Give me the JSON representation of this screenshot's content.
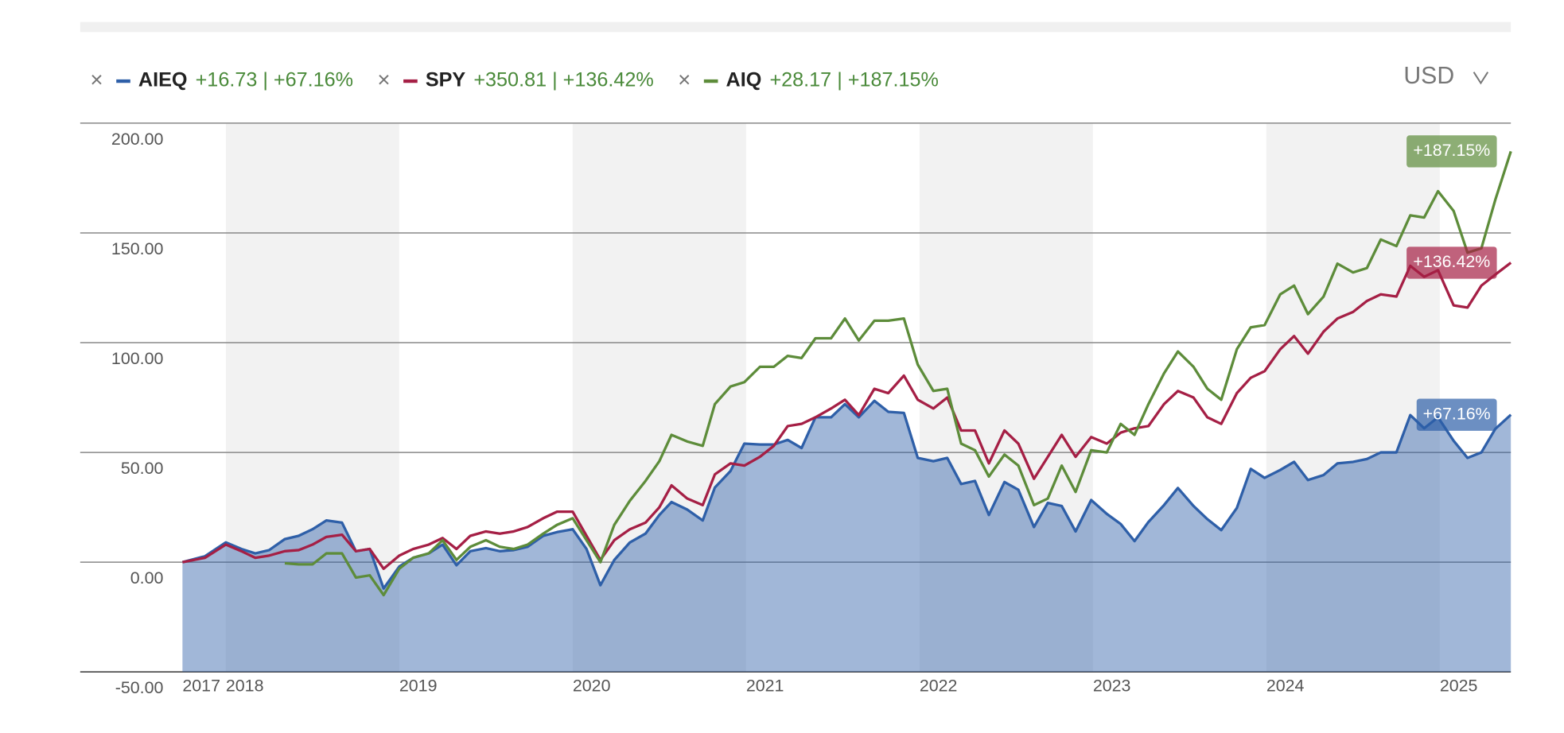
{
  "chart_data": {
    "type": "line",
    "currency": "USD",
    "x": [
      2017.75,
      2017.88,
      2018.0,
      2018.09,
      2018.17,
      2018.25,
      2018.34,
      2018.42,
      2018.5,
      2018.58,
      2018.67,
      2018.75,
      2018.83,
      2018.91,
      2019.0,
      2019.08,
      2019.17,
      2019.25,
      2019.33,
      2019.41,
      2019.5,
      2019.58,
      2019.66,
      2019.74,
      2019.83,
      2019.91,
      2020.0,
      2020.08,
      2020.16,
      2020.24,
      2020.33,
      2020.42,
      2020.5,
      2020.57,
      2020.66,
      2020.75,
      2020.82,
      2020.91,
      2020.99,
      2021.08,
      2021.16,
      2021.24,
      2021.32,
      2021.4,
      2021.49,
      2021.57,
      2021.65,
      2021.74,
      2021.82,
      2021.91,
      2021.99,
      2022.08,
      2022.16,
      2022.24,
      2022.32,
      2022.4,
      2022.49,
      2022.57,
      2022.66,
      2022.74,
      2022.82,
      2022.9,
      2022.99,
      2023.08,
      2023.16,
      2023.24,
      2023.32,
      2023.41,
      2023.49,
      2023.58,
      2023.66,
      2023.74,
      2023.83,
      2023.91,
      2023.99,
      2024.08,
      2024.16,
      2024.24,
      2024.33,
      2024.41,
      2024.5,
      2024.58,
      2024.66,
      2024.75,
      2024.83,
      2024.91,
      2024.99,
      2025.08,
      2025.16,
      2025.24,
      2025.32,
      2025.41
    ],
    "series": [
      {
        "name": "AIEQ",
        "change": "+16.73 | +67.16%",
        "end_label": "+67.16%",
        "color": "#2e5fa8",
        "area": true,
        "values": [
          0,
          2.7,
          9,
          6,
          4,
          5.5,
          10.5,
          12,
          15,
          19,
          18,
          5,
          6,
          -12,
          -2,
          2,
          4,
          8,
          -1.4,
          5,
          6.4,
          5,
          5.5,
          7,
          12,
          13.7,
          15,
          6,
          -10.5,
          1,
          9,
          13,
          21.5,
          27.4,
          24,
          19,
          34,
          41.5,
          54,
          53.6,
          53.6,
          55.7,
          52,
          66,
          66,
          72,
          66,
          73.5,
          68.5,
          68,
          47.5,
          46,
          47.5,
          35.6,
          37,
          21.5,
          36.5,
          33,
          16,
          27,
          25.6,
          14,
          28.3,
          22,
          17.4,
          9.6,
          18.3,
          26,
          33.8,
          25.6,
          19.6,
          14.6,
          24.7,
          42.5,
          38.4,
          42,
          45.7,
          37.4,
          39.7,
          45,
          45.7,
          47,
          50,
          50,
          67,
          61,
          66,
          55.3,
          47.5,
          50,
          60.7,
          67.16
        ]
      },
      {
        "name": "SPY",
        "change": "+350.81 | +136.42%",
        "end_label": "+136.42%",
        "color": "#a51f45",
        "area": false,
        "values": [
          0,
          2,
          8,
          5,
          2,
          3,
          5,
          5.5,
          8,
          11.5,
          12.5,
          5,
          6,
          -3,
          3,
          6,
          8,
          11,
          6,
          12,
          14,
          13,
          14,
          16,
          20,
          23,
          23,
          12,
          1,
          10,
          15,
          18,
          25,
          35,
          29,
          26,
          40,
          45,
          44,
          48,
          53,
          62,
          63,
          66,
          70,
          74,
          67,
          79,
          77,
          85,
          74,
          70,
          75,
          60,
          60,
          45,
          60,
          54,
          38,
          48,
          58,
          48,
          57,
          54,
          59,
          61,
          62,
          72,
          78,
          75,
          66,
          63,
          77,
          84,
          87,
          97,
          103,
          95,
          105,
          111,
          114,
          119,
          122,
          121,
          135,
          130,
          133,
          117,
          116,
          126,
          131,
          136.42
        ]
      },
      {
        "name": "AIQ",
        "change": "+28.17 | +187.15%",
        "end_label": "+187.15%",
        "color": "#5d8c3a",
        "area": false,
        "values": [
          null,
          null,
          null,
          null,
          null,
          null,
          -0.5,
          -1,
          -1,
          4,
          4,
          -7,
          -6,
          -15,
          -3,
          2,
          4,
          10,
          1,
          7,
          10,
          7,
          6,
          8,
          13,
          17,
          20,
          10,
          0,
          17,
          28,
          37,
          46,
          58,
          55,
          53,
          72,
          80,
          82,
          89,
          89,
          94,
          93,
          102,
          102,
          111,
          101,
          110,
          110,
          111,
          90,
          78,
          79,
          54,
          51,
          39,
          49,
          44,
          26,
          29,
          44,
          32,
          51,
          50,
          63,
          58,
          72,
          86,
          96,
          89,
          79,
          74,
          97,
          107,
          108,
          122,
          126,
          113,
          121,
          136,
          132,
          134,
          147,
          144,
          158,
          157,
          169,
          160,
          141,
          143,
          165,
          187.15
        ]
      }
    ],
    "xlim": [
      2017.75,
      2025.41
    ],
    "xticks": [
      {
        "value": 2017.75,
        "label": "2017"
      },
      2018,
      2019,
      2020,
      2021,
      2022,
      2023,
      2024,
      2025
    ],
    "ylim": [
      -50,
      200
    ],
    "yticks": [
      {
        "value": -50,
        "label": "-50.00"
      },
      {
        "value": 0,
        "label": "0.00"
      },
      {
        "value": 50,
        "label": "50.00"
      },
      {
        "value": 100,
        "label": "100.00"
      },
      {
        "value": 150,
        "label": "150.00"
      },
      {
        "value": 200,
        "label": "200.00"
      }
    ],
    "grid": true,
    "year_bands": true
  }
}
